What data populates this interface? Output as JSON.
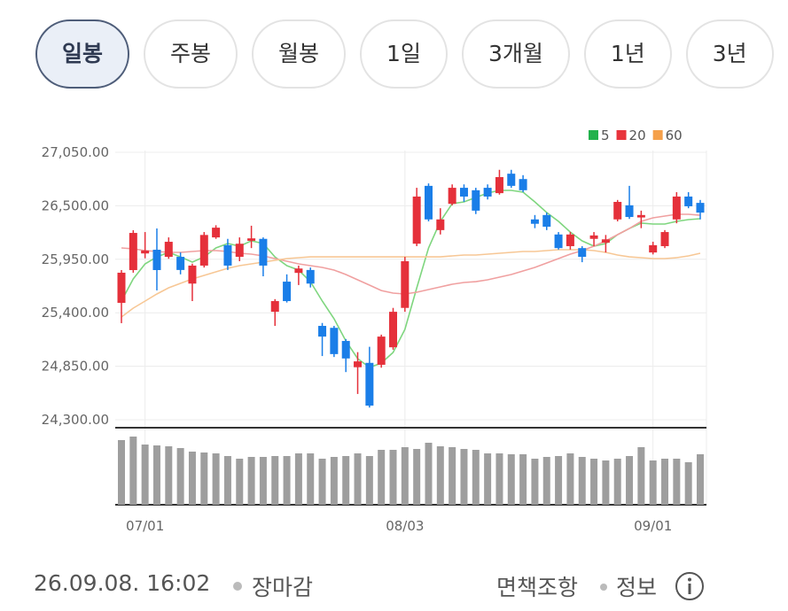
{
  "tabs": [
    "일봉",
    "주봉",
    "월봉",
    "1일",
    "3개월",
    "1년",
    "3년"
  ],
  "active_tab": 0,
  "chart_data": {
    "type": "candlestick",
    "categories": [
      null,
      null,
      "07/01",
      null,
      null,
      null,
      null,
      null,
      null,
      null,
      null,
      null,
      null,
      null,
      null,
      null,
      null,
      null,
      null,
      null,
      null,
      null,
      null,
      null,
      "08/03",
      null,
      null,
      null,
      null,
      null,
      null,
      null,
      null,
      null,
      null,
      null,
      null,
      null,
      null,
      null,
      null,
      null,
      null,
      null,
      null,
      "09/01",
      null,
      null,
      null,
      null
    ],
    "open": [
      25502,
      25839,
      26010,
      26048,
      25975,
      25975,
      25700,
      25885,
      26175,
      26095,
      25975,
      26140,
      26160,
      25410,
      25720,
      25810,
      25840,
      25265,
      25245,
      25110,
      24840,
      24885,
      24865,
      25045,
      25450,
      26110,
      26705,
      26250,
      26520,
      26685,
      26660,
      26685,
      26630,
      26830,
      26775,
      26360,
      26405,
      26205,
      26085,
      26065,
      26160,
      26120,
      26360,
      26505,
      26380,
      26020,
      26085,
      26360,
      26595,
      26530
    ],
    "high": [
      25839,
      26249,
      26230,
      26267,
      26175,
      26020,
      25905,
      26230,
      26300,
      26160,
      26175,
      26295,
      26175,
      25540,
      25795,
      25885,
      25865,
      25295,
      25265,
      25130,
      24995,
      25050,
      25175,
      25450,
      25975,
      26685,
      26730,
      26475,
      26720,
      26720,
      26685,
      26720,
      26870,
      26870,
      26815,
      26405,
      26430,
      26230,
      26230,
      26085,
      26230,
      26200,
      26560,
      26705,
      26450,
      26130,
      26250,
      26640,
      26640,
      26560
    ],
    "low": [
      25293,
      25812,
      25960,
      25630,
      25955,
      25795,
      25520,
      25865,
      26160,
      25840,
      25930,
      26065,
      25775,
      25265,
      25505,
      25685,
      25660,
      24955,
      24945,
      24790,
      24565,
      24425,
      24835,
      25020,
      25410,
      26085,
      26340,
      26205,
      26505,
      26540,
      26415,
      26565,
      26615,
      26685,
      26640,
      26270,
      26250,
      26050,
      26050,
      25920,
      26085,
      26020,
      26340,
      26365,
      26270,
      26000,
      26065,
      26320,
      26475,
      26360
    ],
    "close": [
      25812,
      26221,
      26040,
      25839,
      26130,
      25840,
      25885,
      26200,
      26275,
      25885,
      26110,
      26165,
      25885,
      25520,
      25520,
      25855,
      25700,
      25155,
      24975,
      24930,
      24900,
      24445,
      25155,
      25410,
      25930,
      26595,
      26360,
      26360,
      26685,
      26595,
      26450,
      26595,
      26795,
      26705,
      26660,
      26315,
      26285,
      26065,
      26205,
      25975,
      26195,
      26155,
      26540,
      26385,
      26405,
      26095,
      26230,
      26595,
      26495,
      26430
    ],
    "up_color": "#e5303a",
    "down_color": "#1a7ee8",
    "ylim": [
      24300,
      27050
    ],
    "yticks": [
      {
        "value": 24300,
        "label": "24,300.00"
      },
      {
        "value": 24850,
        "label": "24,850.00"
      },
      {
        "value": 25400,
        "label": "25,400.00"
      },
      {
        "value": 25950,
        "label": "25,950.00"
      },
      {
        "value": 26500,
        "label": "26,500.00"
      },
      {
        "value": 27050,
        "label": "27,050.00"
      }
    ],
    "grid": true,
    "series": [
      {
        "name": "5",
        "color": "#22b14c",
        "line_color": "#7fd67f",
        "values": [
          25520,
          25748,
          25903,
          25975,
          26021,
          25975,
          25921,
          25975,
          26067,
          26112,
          26085,
          26139,
          26112,
          25975,
          25884,
          25839,
          25720,
          25520,
          25338,
          25110,
          24928,
          24837,
          24883,
          24992,
          25229,
          25657,
          26067,
          26340,
          26522,
          26540,
          26586,
          26631,
          26658,
          26658,
          26640,
          26540,
          26431,
          26340,
          26230,
          26139,
          26085,
          26112,
          26203,
          26267,
          26322,
          26312,
          26312,
          26340,
          26358,
          26367
        ]
      },
      {
        "name": "20",
        "color": "#e8343c",
        "line_color": "#f0a0a0",
        "values": [
          26067,
          26057,
          26039,
          26030,
          26021,
          26021,
          26030,
          26039,
          26039,
          26030,
          26012,
          26003,
          25985,
          25957,
          25930,
          25903,
          25884,
          25866,
          25839,
          25793,
          25739,
          25684,
          25629,
          25602,
          25593,
          25611,
          25639,
          25666,
          25693,
          25711,
          25720,
          25739,
          25766,
          25793,
          25830,
          25866,
          25912,
          25957,
          26003,
          26039,
          26085,
          26139,
          26203,
          26267,
          26340,
          26376,
          26394,
          26413,
          26413,
          26403
        ]
      },
      {
        "name": "60",
        "color": "#f5a04a",
        "line_color": "#f7c795",
        "values": [
          25356,
          25447,
          25520,
          25593,
          25657,
          25702,
          25748,
          25784,
          25821,
          25857,
          25884,
          25903,
          25921,
          25939,
          25957,
          25966,
          25975,
          25975,
          25975,
          25975,
          25975,
          25975,
          25975,
          25975,
          25975,
          25975,
          25975,
          25975,
          25985,
          25994,
          25994,
          26003,
          26012,
          26021,
          26030,
          26030,
          26039,
          26048,
          26048,
          26048,
          26039,
          26021,
          25994,
          25975,
          25966,
          25957,
          25957,
          25966,
          25985,
          26012
        ]
      }
    ],
    "volume": [
      73,
      77,
      68,
      67,
      66,
      64,
      60,
      59,
      58,
      55,
      52,
      54,
      54,
      55,
      55,
      58,
      58,
      52,
      54,
      55,
      58,
      55,
      62,
      62,
      65,
      63,
      70,
      66,
      65,
      63,
      62,
      58,
      58,
      57,
      57,
      52,
      54,
      55,
      58,
      54,
      52,
      50,
      52,
      55,
      65,
      50,
      52,
      52,
      48,
      57
    ],
    "volume_ylim": [
      0,
      86
    ],
    "volume_color": "#9e9e9e"
  },
  "footer": {
    "timestamp": "26.09.08. 16:02",
    "status": "장마감",
    "links": [
      "면책조항",
      "정보"
    ]
  }
}
